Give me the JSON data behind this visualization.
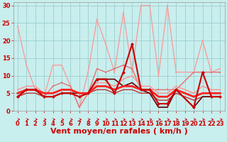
{
  "title": "",
  "xlabel": "Vent moyen/en rafales ( km/h )",
  "ylabel": "",
  "xlim": [
    -0.5,
    23.5
  ],
  "ylim": [
    0,
    31
  ],
  "background_color": "#c8eeed",
  "grid_color": "#9ecece",
  "xticks": [
    0,
    1,
    2,
    3,
    4,
    5,
    6,
    7,
    8,
    9,
    10,
    11,
    12,
    13,
    14,
    15,
    16,
    17,
    18,
    19,
    20,
    21,
    22,
    23
  ],
  "yticks": [
    0,
    5,
    10,
    15,
    20,
    25,
    30
  ],
  "series": [
    {
      "x": [
        0,
        1,
        2,
        3,
        4,
        5,
        6,
        7,
        8,
        9,
        10,
        11,
        12,
        13,
        14,
        15,
        16,
        17,
        18,
        20,
        21,
        22,
        23
      ],
      "y": [
        24,
        13,
        6,
        4,
        13,
        13,
        7,
        1,
        11,
        26,
        19,
        11,
        28,
        11,
        30,
        30,
        10,
        30,
        11,
        11,
        20,
        11,
        12
      ],
      "color": "#f4a0a0",
      "lw": 1.0,
      "marker": "s",
      "ms": 2.0,
      "zorder": 3
    },
    {
      "x": [
        0,
        1,
        2,
        3,
        4,
        5,
        6,
        7,
        8,
        9,
        10,
        11,
        12,
        13,
        14,
        15,
        16,
        17,
        18,
        20,
        21,
        22,
        23
      ],
      "y": [
        4,
        6,
        6,
        4,
        7,
        8,
        7,
        1,
        5,
        12,
        11,
        12,
        13,
        12,
        6,
        6,
        6,
        6,
        6,
        11,
        11,
        11,
        11
      ],
      "color": "#e87070",
      "lw": 1.0,
      "marker": "s",
      "ms": 2.0,
      "zorder": 3
    },
    {
      "x": [
        0,
        1,
        2,
        3,
        4,
        5,
        6,
        7,
        8,
        9,
        10,
        11,
        12,
        13,
        14,
        15,
        16,
        17,
        18,
        20,
        21,
        22,
        23
      ],
      "y": [
        4,
        6,
        6,
        4,
        4,
        5,
        5,
        4,
        5,
        9,
        9,
        5,
        11,
        19,
        6,
        6,
        2,
        2,
        6,
        1,
        11,
        4,
        4
      ],
      "color": "#cc0000",
      "lw": 1.5,
      "marker": "D",
      "ms": 2.5,
      "zorder": 5
    },
    {
      "x": [
        0,
        1,
        2,
        3,
        4,
        5,
        6,
        7,
        8,
        9,
        10,
        11,
        12,
        13,
        14,
        15,
        16,
        17,
        18,
        20,
        21,
        22,
        23
      ],
      "y": [
        4,
        6,
        6,
        4,
        4,
        5,
        5,
        5,
        5,
        9,
        9,
        9,
        7,
        8,
        6,
        5,
        1,
        1,
        6,
        1,
        4,
        4,
        4
      ],
      "color": "#660000",
      "lw": 1.2,
      "marker": null,
      "ms": 0,
      "zorder": 4
    },
    {
      "x": [
        0,
        1,
        2,
        3,
        4,
        5,
        6,
        7,
        8,
        9,
        10,
        11,
        12,
        13,
        14,
        15,
        16,
        17,
        18,
        20,
        21,
        22,
        23
      ],
      "y": [
        5,
        6,
        6,
        5,
        5,
        6,
        6,
        5,
        5,
        7,
        7,
        6,
        7,
        7,
        6,
        6,
        4,
        4,
        6,
        4,
        5,
        5,
        5
      ],
      "color": "#ff2222",
      "lw": 2.0,
      "marker": null,
      "ms": 0,
      "zorder": 4
    },
    {
      "x": [
        0,
        1,
        2,
        3,
        4,
        5,
        6,
        7,
        8,
        9,
        10,
        11,
        12,
        13,
        14,
        15,
        16,
        17,
        18,
        20,
        21,
        22,
        23
      ],
      "y": [
        4,
        5,
        5,
        4,
        4,
        5,
        5,
        4,
        5,
        6,
        6,
        5,
        6,
        6,
        5,
        5,
        3,
        3,
        5,
        3,
        4,
        4,
        4
      ],
      "color": "#bb3333",
      "lw": 1.0,
      "marker": null,
      "ms": 0,
      "zorder": 3
    },
    {
      "x": [
        0,
        1,
        2,
        3,
        4,
        5,
        6,
        7,
        8,
        9,
        10,
        11,
        12,
        13,
        14,
        15,
        16,
        17,
        18,
        20,
        21,
        22,
        23
      ],
      "y": [
        6,
        7,
        7,
        5,
        5,
        6,
        6,
        5,
        5,
        8,
        8,
        7,
        9,
        10,
        7,
        7,
        5,
        5,
        7,
        5,
        7,
        6,
        6
      ],
      "color": "#ff9090",
      "lw": 1.0,
      "marker": null,
      "ms": 0,
      "zorder": 3
    }
  ],
  "arrow_color": "#cc0000",
  "xlabel_color": "#cc0000",
  "xlabel_fontsize": 8,
  "tick_color": "#cc0000",
  "tick_fontsize": 6
}
